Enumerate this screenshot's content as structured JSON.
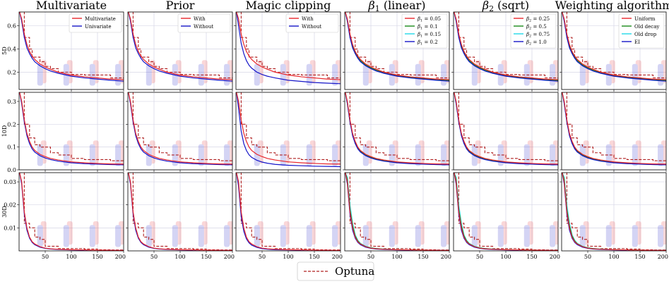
{
  "chart_data": {
    "type": "line",
    "column_titles": [
      "Multivariate",
      "Prior",
      "Magic clipping",
      "β1_LINEAR",
      "β2_SQRT",
      "Weighting algorithm"
    ],
    "row_labels": [
      "5D",
      "10D",
      "30D"
    ],
    "x_ticks": [
      "50",
      "100",
      "150",
      "200"
    ],
    "xlim": [
      0,
      200
    ],
    "rows": [
      {
        "label": "5D",
        "ylim": [
          0.05,
          0.72
        ],
        "y_ticks": [
          "0.2",
          "0.4",
          "0.6"
        ]
      },
      {
        "label": "10D",
        "ylim": [
          0.0,
          0.34
        ],
        "y_ticks": [
          "0.0",
          "0.1",
          "0.2",
          "0.3"
        ]
      },
      {
        "label": "30D",
        "ylim": [
          0.0,
          0.034
        ],
        "y_ticks": [
          "0.01",
          "0.02",
          "0.03"
        ]
      }
    ],
    "columns": [
      {
        "title": "Multivariate",
        "legend": [
          {
            "label": "Multivariate",
            "color": "#e8262b"
          },
          {
            "label": "Univariate",
            "color": "#1515c8"
          }
        ]
      },
      {
        "title": "Prior",
        "legend": [
          {
            "label": "With",
            "color": "#e8262b"
          },
          {
            "label": "Without",
            "color": "#1515c8"
          }
        ]
      },
      {
        "title": "Magic clipping",
        "legend": [
          {
            "label": "With",
            "color": "#e8262b"
          },
          {
            "label": "Without",
            "color": "#1515c8"
          }
        ]
      },
      {
        "title": "β1 (linear)",
        "legend": [
          {
            "label": "β1 = 0.05",
            "color": "#e8262b"
          },
          {
            "label": "β1 = 0.1",
            "color": "#1a8a1a"
          },
          {
            "label": "β1 = 0.15",
            "color": "#22d8e8"
          },
          {
            "label": "β1 = 0.2",
            "color": "#1515c8"
          }
        ]
      },
      {
        "title": "β2 (sqrt)",
        "legend": [
          {
            "label": "β2 = 0.25",
            "color": "#e8262b"
          },
          {
            "label": "β2 = 0.5",
            "color": "#1a8a1a"
          },
          {
            "label": "β2 = 0.75",
            "color": "#22d8e8"
          },
          {
            "label": "β2 = 1.0",
            "color": "#1515c8"
          }
        ]
      },
      {
        "title": "Weighting algorithm",
        "legend": [
          {
            "label": "Uniform",
            "color": "#e8262b"
          },
          {
            "label": "Old decay",
            "color": "#1a8a1a"
          },
          {
            "label": "Old drop",
            "color": "#22d8e8"
          },
          {
            "label": "EI",
            "color": "#1515c8"
          }
        ]
      }
    ],
    "x": [
      1,
      5,
      10,
      15,
      20,
      25,
      30,
      40,
      50,
      60,
      75,
      100,
      125,
      150,
      175,
      200
    ],
    "curves_by_row": [
      {
        "red": [
          0.72,
          0.66,
          0.53,
          0.44,
          0.38,
          0.34,
          0.31,
          0.27,
          0.245,
          0.225,
          0.2,
          0.175,
          0.16,
          0.15,
          0.14,
          0.135
        ],
        "blue": [
          0.72,
          0.64,
          0.5,
          0.41,
          0.36,
          0.32,
          0.29,
          0.255,
          0.23,
          0.21,
          0.19,
          0.165,
          0.15,
          0.14,
          0.13,
          0.122
        ],
        "blue_clip": [
          0.72,
          0.6,
          0.45,
          0.36,
          0.3,
          0.26,
          0.235,
          0.2,
          0.18,
          0.165,
          0.15,
          0.13,
          0.12,
          0.11,
          0.105,
          0.1
        ],
        "green": [
          0.72,
          0.65,
          0.52,
          0.43,
          0.37,
          0.33,
          0.3,
          0.262,
          0.237,
          0.217,
          0.195,
          0.17,
          0.155,
          0.145,
          0.135,
          0.128
        ],
        "cyan": [
          0.72,
          0.64,
          0.505,
          0.415,
          0.362,
          0.322,
          0.292,
          0.256,
          0.232,
          0.212,
          0.19,
          0.166,
          0.151,
          0.141,
          0.131,
          0.124
        ],
        "optuna": [
          0.72,
          0.72,
          0.5,
          0.5,
          0.4,
          0.33,
          0.33,
          0.29,
          0.25,
          0.23,
          0.2,
          0.18,
          0.175,
          0.175,
          0.15,
          0.145
        ]
      },
      {
        "red": [
          0.34,
          0.3,
          0.22,
          0.16,
          0.125,
          0.1,
          0.085,
          0.068,
          0.058,
          0.05,
          0.043,
          0.035,
          0.031,
          0.028,
          0.026,
          0.025
        ],
        "blue": [
          0.34,
          0.29,
          0.21,
          0.15,
          0.115,
          0.092,
          0.078,
          0.062,
          0.052,
          0.045,
          0.038,
          0.031,
          0.027,
          0.025,
          0.023,
          0.022
        ],
        "blue_clip": [
          0.34,
          0.27,
          0.17,
          0.115,
          0.085,
          0.066,
          0.055,
          0.042,
          0.034,
          0.029,
          0.024,
          0.02,
          0.018,
          0.016,
          0.015,
          0.014
        ],
        "green": [
          0.34,
          0.295,
          0.215,
          0.155,
          0.12,
          0.096,
          0.081,
          0.065,
          0.055,
          0.047,
          0.04,
          0.033,
          0.029,
          0.026,
          0.024,
          0.023
        ],
        "cyan": [
          0.34,
          0.29,
          0.212,
          0.152,
          0.117,
          0.094,
          0.079,
          0.063,
          0.053,
          0.046,
          0.039,
          0.032,
          0.028,
          0.025,
          0.023,
          0.022
        ],
        "optuna": [
          0.34,
          0.34,
          0.2,
          0.2,
          0.14,
          0.14,
          0.11,
          0.1,
          0.1,
          0.075,
          0.065,
          0.05,
          0.045,
          0.045,
          0.04,
          0.037
        ]
      },
      {
        "red": [
          0.034,
          0.03,
          0.017,
          0.01,
          0.006,
          0.004,
          0.003,
          0.0018,
          0.0012,
          0.0009,
          0.0007,
          0.0005,
          0.0004,
          0.0003,
          0.00025,
          0.0002
        ],
        "blue": [
          0.034,
          0.029,
          0.016,
          0.009,
          0.0055,
          0.0037,
          0.0027,
          0.0016,
          0.0011,
          0.0008,
          0.0006,
          0.0004,
          0.0003,
          0.00025,
          0.0002,
          0.00015
        ],
        "blue_clip": [
          0.034,
          0.028,
          0.015,
          0.0085,
          0.0052,
          0.0035,
          0.0025,
          0.0015,
          0.001,
          0.0007,
          0.0005,
          0.0004,
          0.0003,
          0.0002,
          0.00015,
          0.0001
        ],
        "green": [
          0.034,
          0.031,
          0.018,
          0.011,
          0.0065,
          0.0043,
          0.0031,
          0.0019,
          0.0013,
          0.001,
          0.0007,
          0.0005,
          0.0004,
          0.0003,
          0.00025,
          0.0002
        ],
        "cyan": [
          0.034,
          0.032,
          0.02,
          0.012,
          0.007,
          0.0046,
          0.0033,
          0.002,
          0.0014,
          0.001,
          0.0008,
          0.0005,
          0.0004,
          0.0003,
          0.00025,
          0.0002
        ],
        "optuna": [
          0.034,
          0.034,
          0.012,
          0.012,
          0.01,
          0.01,
          0.006,
          0.005,
          0.002,
          0.002,
          0.001,
          0.001,
          0.0008,
          0.0005,
          0.0004,
          0.0003
        ]
      }
    ],
    "bottom_legend": {
      "label": "Optuna",
      "color": "#b02020",
      "style": "dashed"
    },
    "grid": true
  }
}
